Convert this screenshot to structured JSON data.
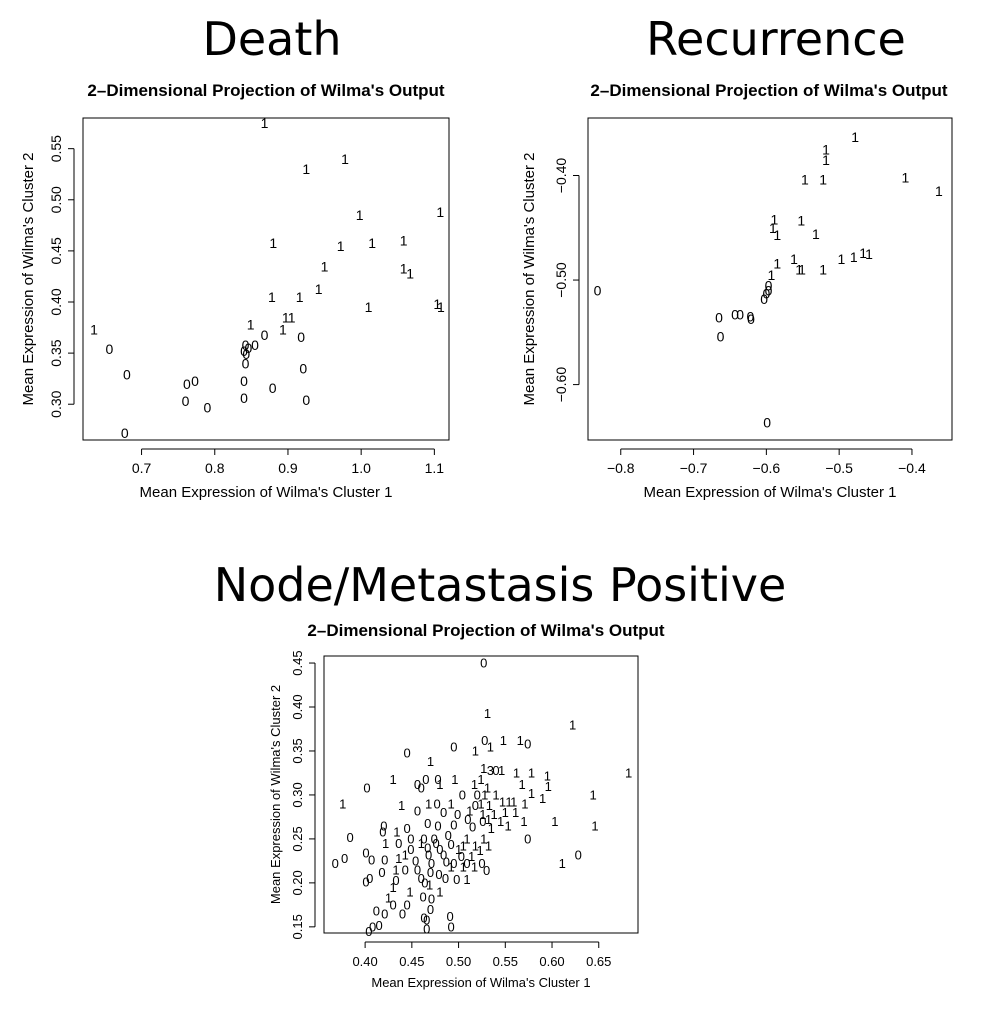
{
  "headings": [
    "Death",
    "Recurrence",
    "Node/Metastasis Positive"
  ],
  "chart_data": [
    {
      "type": "scatter",
      "title": "2–Dimensional Projection of Wilma's Output",
      "xlabel": "Mean Expression of Wilma's Cluster 1",
      "ylabel": "Mean Expression of Wilma's Cluster 2",
      "xlim": [
        0.62,
        1.12
      ],
      "ylim": [
        0.265,
        0.58
      ],
      "xticks": [
        0.7,
        0.8,
        0.9,
        1.0,
        1.1
      ],
      "xtick_labels": [
        "0.7",
        "0.8",
        "0.9",
        "1.0",
        "1.1"
      ],
      "yticks": [
        0.3,
        0.35,
        0.4,
        0.45,
        0.5,
        0.55
      ],
      "ytick_labels": [
        "0.30",
        "0.35",
        "0.40",
        "0.45",
        "0.50",
        "0.55"
      ],
      "points": [
        [
          0.868,
          0.575,
          "1"
        ],
        [
          0.925,
          0.53,
          "1"
        ],
        [
          0.978,
          0.54,
          "1"
        ],
        [
          0.998,
          0.485,
          "1"
        ],
        [
          1.108,
          0.488,
          "1"
        ],
        [
          0.88,
          0.458,
          "1"
        ],
        [
          0.972,
          0.455,
          "1"
        ],
        [
          1.015,
          0.458,
          "1"
        ],
        [
          1.058,
          0.46,
          "1"
        ],
        [
          0.95,
          0.435,
          "1"
        ],
        [
          1.058,
          0.433,
          "1"
        ],
        [
          1.067,
          0.428,
          "1"
        ],
        [
          0.942,
          0.413,
          "1"
        ],
        [
          0.878,
          0.405,
          "1"
        ],
        [
          0.916,
          0.405,
          "1"
        ],
        [
          1.104,
          0.398,
          "1"
        ],
        [
          1.109,
          0.395,
          "1"
        ],
        [
          1.01,
          0.395,
          "1"
        ],
        [
          0.897,
          0.385,
          "1"
        ],
        [
          0.905,
          0.385,
          "1"
        ],
        [
          0.849,
          0.378,
          "1"
        ],
        [
          0.893,
          0.373,
          "1"
        ],
        [
          0.635,
          0.373,
          "1"
        ],
        [
          0.868,
          0.368,
          "0"
        ],
        [
          0.918,
          0.366,
          "0"
        ],
        [
          0.842,
          0.358,
          "0"
        ],
        [
          0.855,
          0.358,
          "0"
        ],
        [
          0.846,
          0.355,
          "0"
        ],
        [
          0.84,
          0.352,
          "0"
        ],
        [
          0.843,
          0.349,
          "0"
        ],
        [
          0.656,
          0.354,
          "0"
        ],
        [
          0.842,
          0.34,
          "0"
        ],
        [
          0.921,
          0.335,
          "0"
        ],
        [
          0.68,
          0.329,
          "0"
        ],
        [
          0.84,
          0.323,
          "0"
        ],
        [
          0.773,
          0.323,
          "0"
        ],
        [
          0.762,
          0.32,
          "0"
        ],
        [
          0.879,
          0.316,
          "0"
        ],
        [
          0.76,
          0.303,
          "0"
        ],
        [
          0.84,
          0.306,
          "0"
        ],
        [
          0.925,
          0.304,
          "0"
        ],
        [
          0.79,
          0.297,
          "0"
        ],
        [
          0.677,
          0.272,
          "0"
        ]
      ]
    },
    {
      "type": "scatter",
      "title": "2–Dimensional Projection of Wilma's Output",
      "xlabel": "Mean Expression of Wilma's Cluster 1",
      "ylabel": "Mean Expression of Wilma's Cluster 2",
      "xlim": [
        -0.845,
        -0.345
      ],
      "ylim": [
        -0.653,
        -0.345
      ],
      "xticks": [
        -0.8,
        -0.7,
        -0.6,
        -0.5,
        -0.4
      ],
      "xtick_labels": [
        "−0.8",
        "−0.7",
        "−0.6",
        "−0.5",
        "−0.4"
      ],
      "yticks": [
        -0.6,
        -0.5,
        -0.4
      ],
      "ytick_labels": [
        "−0.60",
        "−0.50",
        "−0.40"
      ],
      "points": [
        [
          -0.478,
          -0.363,
          "1"
        ],
        [
          -0.518,
          -0.385,
          "1"
        ],
        [
          -0.518,
          -0.375,
          "1"
        ],
        [
          -0.547,
          -0.404,
          "1"
        ],
        [
          -0.522,
          -0.404,
          "1"
        ],
        [
          -0.409,
          -0.402,
          "1"
        ],
        [
          -0.363,
          -0.415,
          "1"
        ],
        [
          -0.589,
          -0.442,
          "1"
        ],
        [
          -0.591,
          -0.45,
          "1"
        ],
        [
          -0.552,
          -0.443,
          "1"
        ],
        [
          -0.532,
          -0.456,
          "1"
        ],
        [
          -0.585,
          -0.457,
          "1"
        ],
        [
          -0.467,
          -0.474,
          "1"
        ],
        [
          -0.459,
          -0.475,
          "1"
        ],
        [
          -0.48,
          -0.478,
          "1"
        ],
        [
          -0.497,
          -0.48,
          "1"
        ],
        [
          -0.562,
          -0.48,
          "1"
        ],
        [
          -0.585,
          -0.484,
          "1"
        ],
        [
          -0.555,
          -0.49,
          "1"
        ],
        [
          -0.551,
          -0.49,
          "1"
        ],
        [
          -0.522,
          -0.49,
          "1"
        ],
        [
          -0.593,
          -0.495,
          "1"
        ],
        [
          -0.597,
          -0.505,
          "0"
        ],
        [
          -0.597,
          -0.51,
          "0"
        ],
        [
          -0.832,
          -0.51,
          "0"
        ],
        [
          -0.6,
          -0.513,
          "0"
        ],
        [
          -0.603,
          -0.518,
          "0"
        ],
        [
          -0.643,
          -0.533,
          "0"
        ],
        [
          -0.636,
          -0.533,
          "0"
        ],
        [
          -0.622,
          -0.535,
          "0"
        ],
        [
          -0.665,
          -0.536,
          "0"
        ],
        [
          -0.621,
          -0.537,
          "0"
        ],
        [
          -0.663,
          -0.554,
          "0"
        ],
        [
          -0.599,
          -0.636,
          "0"
        ]
      ]
    },
    {
      "type": "scatter",
      "title": "2–Dimensional Projection of Wilma's Output",
      "xlabel": "Mean Expression of Wilma's Cluster 1",
      "ylabel": "Mean Expression of Wilma's Cluster 2",
      "xlim": [
        0.356,
        0.692
      ],
      "ylim": [
        0.143,
        0.458
      ],
      "xticks": [
        0.4,
        0.45,
        0.5,
        0.55,
        0.6,
        0.65
      ],
      "xtick_labels": [
        "0.40",
        "0.45",
        "0.50",
        "0.55",
        "0.60",
        "0.65"
      ],
      "yticks": [
        0.15,
        0.2,
        0.25,
        0.3,
        0.35,
        0.4,
        0.45
      ],
      "ytick_labels": [
        "0.15",
        "0.20",
        "0.25",
        "0.30",
        "0.35",
        "0.40",
        "0.45"
      ],
      "points": [
        [
          0.527,
          0.45,
          "0"
        ],
        [
          0.531,
          0.393,
          "1"
        ],
        [
          0.622,
          0.38,
          "1"
        ],
        [
          0.528,
          0.362,
          "0"
        ],
        [
          0.548,
          0.362,
          "1"
        ],
        [
          0.566,
          0.362,
          "1"
        ],
        [
          0.574,
          0.358,
          "0"
        ],
        [
          0.534,
          0.355,
          "1"
        ],
        [
          0.495,
          0.355,
          "0"
        ],
        [
          0.518,
          0.35,
          "1"
        ],
        [
          0.445,
          0.348,
          "0"
        ],
        [
          0.47,
          0.338,
          "1"
        ],
        [
          0.527,
          0.33,
          "1"
        ],
        [
          0.534,
          0.328,
          "3"
        ],
        [
          0.54,
          0.328,
          "0"
        ],
        [
          0.546,
          0.328,
          "1"
        ],
        [
          0.562,
          0.325,
          "1"
        ],
        [
          0.578,
          0.325,
          "1"
        ],
        [
          0.682,
          0.325,
          "1"
        ],
        [
          0.595,
          0.322,
          "1"
        ],
        [
          0.465,
          0.318,
          "0"
        ],
        [
          0.478,
          0.318,
          "0"
        ],
        [
          0.496,
          0.318,
          "1"
        ],
        [
          0.524,
          0.318,
          "1"
        ],
        [
          0.43,
          0.318,
          "1"
        ],
        [
          0.456,
          0.312,
          "0"
        ],
        [
          0.46,
          0.308,
          "0"
        ],
        [
          0.48,
          0.312,
          "1"
        ],
        [
          0.517,
          0.312,
          "1"
        ],
        [
          0.531,
          0.308,
          "1"
        ],
        [
          0.568,
          0.312,
          "1"
        ],
        [
          0.596,
          0.31,
          "1"
        ],
        [
          0.402,
          0.308,
          "0"
        ],
        [
          0.644,
          0.3,
          "1"
        ],
        [
          0.504,
          0.3,
          "0"
        ],
        [
          0.52,
          0.3,
          "0"
        ],
        [
          0.528,
          0.3,
          "1"
        ],
        [
          0.54,
          0.3,
          "1"
        ],
        [
          0.578,
          0.302,
          "1"
        ],
        [
          0.59,
          0.296,
          "1"
        ],
        [
          0.477,
          0.29,
          "0"
        ],
        [
          0.468,
          0.29,
          "1"
        ],
        [
          0.492,
          0.29,
          "1"
        ],
        [
          0.524,
          0.29,
          "1"
        ],
        [
          0.518,
          0.288,
          "0"
        ],
        [
          0.533,
          0.288,
          "1"
        ],
        [
          0.547,
          0.292,
          "1"
        ],
        [
          0.554,
          0.292,
          "1"
        ],
        [
          0.559,
          0.292,
          "1"
        ],
        [
          0.571,
          0.29,
          "1"
        ],
        [
          0.376,
          0.29,
          "1"
        ],
        [
          0.439,
          0.288,
          "1"
        ],
        [
          0.456,
          0.282,
          "0"
        ],
        [
          0.484,
          0.28,
          "0"
        ],
        [
          0.499,
          0.278,
          "0"
        ],
        [
          0.512,
          0.282,
          "1"
        ],
        [
          0.526,
          0.278,
          "1"
        ],
        [
          0.538,
          0.278,
          "1"
        ],
        [
          0.55,
          0.28,
          "1"
        ],
        [
          0.561,
          0.28,
          "1"
        ],
        [
          0.51,
          0.272,
          "0"
        ],
        [
          0.526,
          0.27,
          "0"
        ],
        [
          0.532,
          0.272,
          "1"
        ],
        [
          0.545,
          0.27,
          "1"
        ],
        [
          0.57,
          0.27,
          "1"
        ],
        [
          0.603,
          0.27,
          "1"
        ],
        [
          0.646,
          0.265,
          "1"
        ],
        [
          0.42,
          0.265,
          "0"
        ],
        [
          0.445,
          0.262,
          "0"
        ],
        [
          0.467,
          0.268,
          "0"
        ],
        [
          0.478,
          0.265,
          "0"
        ],
        [
          0.495,
          0.266,
          "0"
        ],
        [
          0.515,
          0.264,
          "0"
        ],
        [
          0.535,
          0.262,
          "1"
        ],
        [
          0.553,
          0.265,
          "1"
        ],
        [
          0.419,
          0.258,
          "0"
        ],
        [
          0.434,
          0.258,
          "1"
        ],
        [
          0.449,
          0.25,
          "0"
        ],
        [
          0.463,
          0.25,
          "0"
        ],
        [
          0.474,
          0.25,
          "0"
        ],
        [
          0.489,
          0.254,
          "0"
        ],
        [
          0.509,
          0.25,
          "1"
        ],
        [
          0.527,
          0.25,
          "1"
        ],
        [
          0.574,
          0.25,
          "0"
        ],
        [
          0.384,
          0.252,
          "0"
        ],
        [
          0.422,
          0.245,
          "1"
        ],
        [
          0.436,
          0.245,
          "0"
        ],
        [
          0.46,
          0.245,
          "1"
        ],
        [
          0.476,
          0.245,
          "0"
        ],
        [
          0.492,
          0.244,
          "0"
        ],
        [
          0.505,
          0.242,
          "1"
        ],
        [
          0.518,
          0.242,
          "1"
        ],
        [
          0.532,
          0.242,
          "1"
        ],
        [
          0.449,
          0.238,
          "0"
        ],
        [
          0.467,
          0.24,
          "0"
        ],
        [
          0.48,
          0.238,
          "0"
        ],
        [
          0.5,
          0.238,
          "1"
        ],
        [
          0.523,
          0.237,
          "1"
        ],
        [
          0.401,
          0.234,
          "0"
        ],
        [
          0.443,
          0.232,
          "1"
        ],
        [
          0.468,
          0.232,
          "0"
        ],
        [
          0.484,
          0.232,
          "0"
        ],
        [
          0.503,
          0.23,
          "0"
        ],
        [
          0.514,
          0.23,
          "1"
        ],
        [
          0.628,
          0.232,
          "0"
        ],
        [
          0.407,
          0.226,
          "0"
        ],
        [
          0.421,
          0.226,
          "0"
        ],
        [
          0.436,
          0.228,
          "1"
        ],
        [
          0.454,
          0.225,
          "0"
        ],
        [
          0.471,
          0.222,
          "0"
        ],
        [
          0.487,
          0.224,
          "0"
        ],
        [
          0.495,
          0.222,
          "0"
        ],
        [
          0.509,
          0.222,
          "0"
        ],
        [
          0.525,
          0.222,
          "0"
        ],
        [
          0.611,
          0.222,
          "1"
        ],
        [
          0.368,
          0.222,
          "0"
        ],
        [
          0.378,
          0.228,
          "0"
        ],
        [
          0.433,
          0.215,
          "1"
        ],
        [
          0.443,
          0.215,
          "0"
        ],
        [
          0.456,
          0.215,
          "0"
        ],
        [
          0.47,
          0.212,
          "0"
        ],
        [
          0.492,
          0.218,
          "1"
        ],
        [
          0.505,
          0.218,
          "1"
        ],
        [
          0.517,
          0.218,
          "1"
        ],
        [
          0.53,
          0.214,
          "0"
        ],
        [
          0.418,
          0.212,
          "0"
        ],
        [
          0.479,
          0.21,
          "0"
        ],
        [
          0.405,
          0.205,
          "0"
        ],
        [
          0.401,
          0.201,
          "0"
        ],
        [
          0.433,
          0.203,
          "0"
        ],
        [
          0.46,
          0.205,
          "0"
        ],
        [
          0.486,
          0.205,
          "0"
        ],
        [
          0.498,
          0.204,
          "0"
        ],
        [
          0.509,
          0.204,
          "1"
        ],
        [
          0.464,
          0.2,
          "0"
        ],
        [
          0.469,
          0.198,
          "1"
        ],
        [
          0.43,
          0.195,
          "1"
        ],
        [
          0.448,
          0.19,
          "1"
        ],
        [
          0.462,
          0.184,
          "0"
        ],
        [
          0.48,
          0.19,
          "1"
        ],
        [
          0.425,
          0.183,
          "1"
        ],
        [
          0.471,
          0.182,
          "0"
        ],
        [
          0.43,
          0.175,
          "0"
        ],
        [
          0.445,
          0.175,
          "0"
        ],
        [
          0.47,
          0.17,
          "0"
        ],
        [
          0.412,
          0.168,
          "0"
        ],
        [
          0.421,
          0.165,
          "0"
        ],
        [
          0.44,
          0.165,
          "0"
        ],
        [
          0.491,
          0.162,
          "0"
        ],
        [
          0.463,
          0.16,
          "0"
        ],
        [
          0.466,
          0.158,
          "0"
        ],
        [
          0.415,
          0.152,
          "0"
        ],
        [
          0.408,
          0.15,
          "0"
        ],
        [
          0.466,
          0.148,
          "0"
        ],
        [
          0.492,
          0.15,
          "0"
        ],
        [
          0.404,
          0.145,
          "0"
        ]
      ]
    }
  ]
}
